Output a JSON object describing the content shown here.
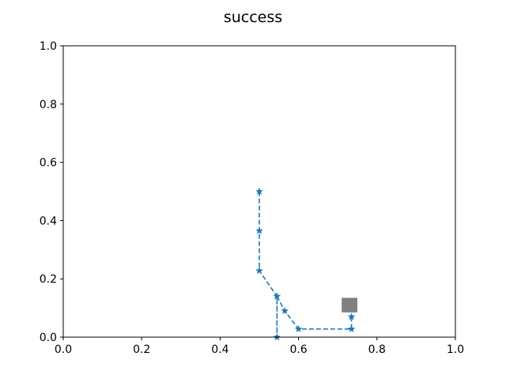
{
  "chart_data": {
    "type": "line",
    "title": "success",
    "xlabel": "",
    "ylabel": "",
    "xlim": [
      0.0,
      1.0
    ],
    "ylim": [
      0.0,
      1.0
    ],
    "xticks": [
      "0.0",
      "0.2",
      "0.4",
      "0.6",
      "0.8",
      "1.0"
    ],
    "yticks": [
      "0.0",
      "0.2",
      "0.4",
      "0.6",
      "0.8",
      "1.0"
    ],
    "grid": false,
    "series": [
      {
        "x": [
          0.5,
          0.5,
          0.5,
          0.545,
          0.545,
          0.545,
          0.565,
          0.6,
          0.735,
          0.735
        ],
        "y": [
          0.5,
          0.365,
          0.228,
          0.14,
          0.0,
          0.14,
          0.09,
          0.028,
          0.028,
          0.07
        ],
        "color": "#1f77b4",
        "linestyle": "dashed",
        "marker": "star"
      }
    ],
    "rect": {
      "x": [
        0.71,
        0.75
      ],
      "y": [
        0.085,
        0.135
      ],
      "color": "#808080"
    }
  }
}
